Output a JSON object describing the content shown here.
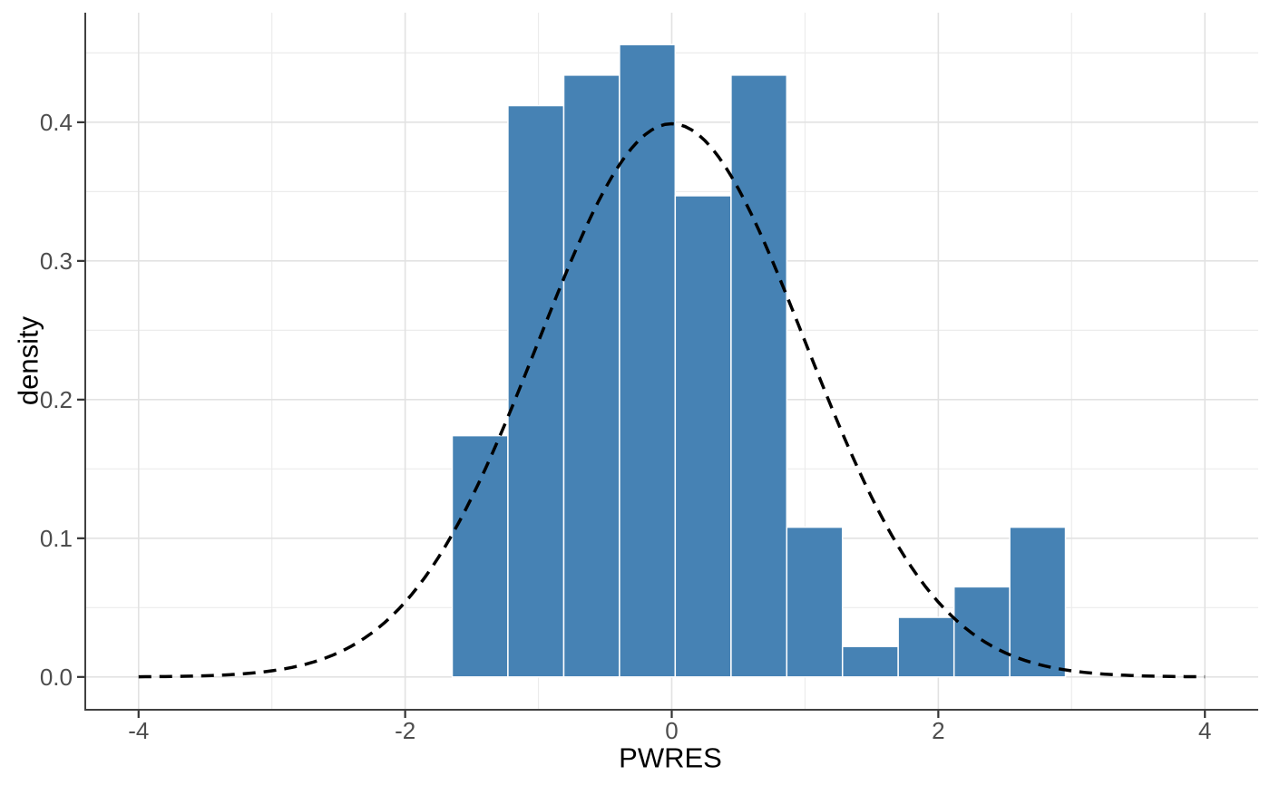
{
  "chart_data": {
    "type": "bar",
    "subtype": "histogram-with-density-overlay",
    "title": "",
    "xlabel": "PWRES",
    "ylabel": "density",
    "x_axis": {
      "range": [
        -4.4,
        4.4
      ],
      "major_ticks": [
        -4,
        -2,
        0,
        2,
        4
      ],
      "tick_labels": [
        "-4",
        "-2",
        "0",
        "2",
        "4"
      ],
      "minor_ticks": [
        -3,
        -1,
        1,
        3
      ]
    },
    "y_axis": {
      "range": [
        -0.023,
        0.479
      ],
      "major_ticks": [
        0.0,
        0.1,
        0.2,
        0.3,
        0.4
      ],
      "tick_labels": [
        "0.0",
        "0.1",
        "0.2",
        "0.3",
        "0.4"
      ],
      "minor_ticks": [
        0.05,
        0.15,
        0.25,
        0.35,
        0.45
      ]
    },
    "histogram": {
      "bin_edges": [
        -1.647,
        -1.229,
        -0.81,
        -0.392,
        0.026,
        0.445,
        0.863,
        1.281,
        1.699,
        2.118,
        2.536,
        2.954
      ],
      "densities": [
        0.174,
        0.412,
        0.434,
        0.456,
        0.347,
        0.434,
        0.108,
        0.022,
        0.043,
        0.065,
        0.108
      ]
    },
    "overlay_curve": {
      "kind": "normal-density",
      "mean": 0,
      "sd": 1,
      "x_min": -4,
      "x_max": 4,
      "line_style": "dashed"
    },
    "grid": true,
    "legend": "none",
    "colors": {
      "bar_fill": "#4682B4",
      "bar_stroke": "#FFFFFF",
      "curve": "#000000",
      "grid_major": "#E2E2E2",
      "grid_minor": "#ECECEC",
      "axis_line": "#414141",
      "tick_mark": "#333333",
      "tick_text": "#4D4D4D",
      "title_text": "#000000",
      "background": "#FFFFFF"
    }
  }
}
